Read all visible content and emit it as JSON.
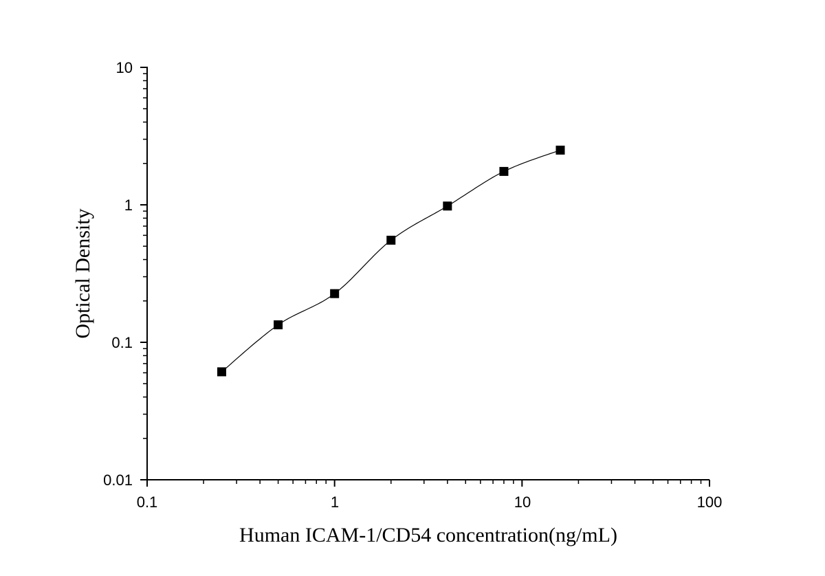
{
  "chart_data": {
    "type": "scatter",
    "title": "",
    "xlabel": "Human ICAM-1/CD54 concentration(ng/mL)",
    "ylabel": "Optical Density",
    "xscale": "log",
    "yscale": "log",
    "xlim": [
      0.1,
      100
    ],
    "ylim": [
      0.01,
      10
    ],
    "x_tick_labels": [
      "0.1",
      "1",
      "10",
      "100"
    ],
    "y_tick_labels": [
      "0.01",
      "0.1",
      "1",
      "10"
    ],
    "grid": false,
    "legend": "none",
    "marker": "square",
    "fit_curve": "smooth",
    "series": [
      {
        "x": [
          0.25,
          0.5,
          1,
          2,
          4,
          8,
          16
        ],
        "y": [
          0.061,
          0.134,
          0.226,
          0.553,
          0.98,
          1.75,
          2.5
        ]
      }
    ],
    "colors": {
      "marker": "#000000",
      "line": "#000000"
    }
  }
}
